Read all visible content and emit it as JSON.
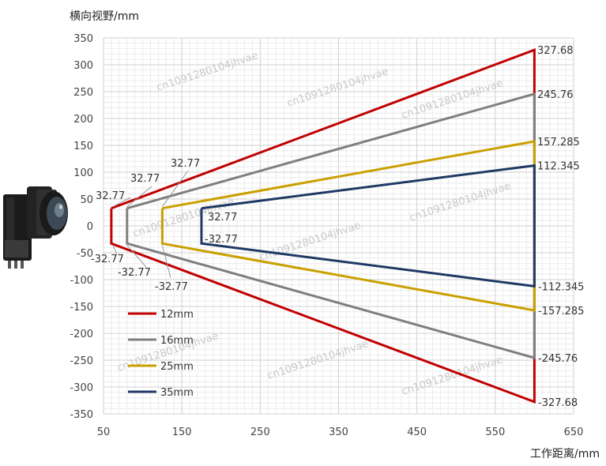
{
  "chart_data": {
    "type": "line",
    "ylabel": "横向视野/mm",
    "xlabel": "工作距离/mm",
    "xlim": [
      50,
      650
    ],
    "ylim": [
      -350,
      350
    ],
    "x_ticks": [
      50,
      150,
      250,
      350,
      450,
      550,
      650
    ],
    "y_ticks": [
      350,
      300,
      250,
      200,
      150,
      100,
      50,
      0,
      -50,
      -100,
      -150,
      -200,
      -250,
      -300,
      -350
    ],
    "grid": true,
    "legend_position": "bottom-left",
    "series": [
      {
        "name": "12mm",
        "color": "#c00000",
        "points": [
          [
            60,
            32.77
          ],
          [
            600,
            327.68
          ],
          [
            600,
            -327.68
          ],
          [
            60,
            -32.77
          ],
          [
            60,
            32.77
          ]
        ],
        "labels": {
          "start_top": "32.77",
          "start_bottom": "-32.77",
          "end_top": "327.68",
          "end_bottom": "-327.68"
        }
      },
      {
        "name": "16mm",
        "color": "#7f7f7f",
        "points": [
          [
            80,
            32.77
          ],
          [
            600,
            245.76
          ],
          [
            600,
            -245.76
          ],
          [
            80,
            -32.77
          ],
          [
            80,
            32.77
          ]
        ],
        "labels": {
          "start_top": "32.77",
          "start_bottom": "-32.77",
          "end_top": "245.76",
          "end_bottom": "-245.76"
        }
      },
      {
        "name": "25mm",
        "color": "#c9a000",
        "points": [
          [
            125,
            32.77
          ],
          [
            600,
            157.285
          ],
          [
            600,
            -157.285
          ],
          [
            125,
            -32.77
          ],
          [
            125,
            32.77
          ]
        ],
        "labels": {
          "start_top": "32.77",
          "start_bottom": "-32.77",
          "end_top": "157.285",
          "end_bottom": "-157.285"
        }
      },
      {
        "name": "35mm",
        "color": "#1f3864",
        "points": [
          [
            175,
            32.77
          ],
          [
            600,
            112.345
          ],
          [
            600,
            -112.345
          ],
          [
            175,
            -32.77
          ],
          [
            175,
            32.77
          ]
        ],
        "labels": {
          "start_top": "32.77",
          "start_bottom": "-32.77",
          "end_top": "112.345",
          "end_bottom": "-112.345"
        }
      }
    ],
    "watermark": "cn1091280104jhvae"
  }
}
